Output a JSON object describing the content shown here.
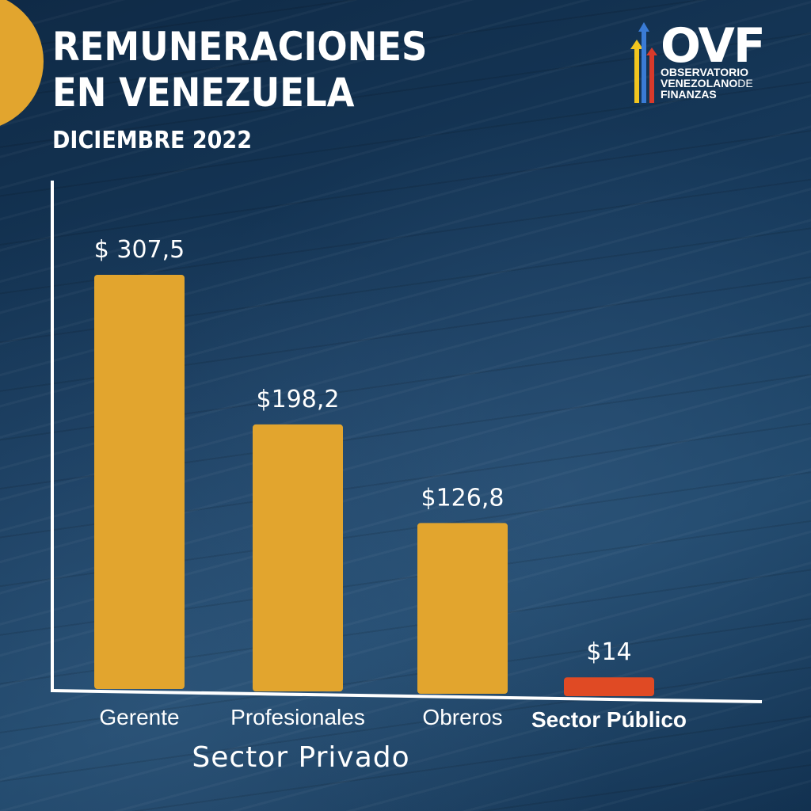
{
  "header": {
    "title_line1": "REMUNERACIONES",
    "title_line2": "EN VENEZUELA",
    "subtitle": "DICIEMBRE 2022"
  },
  "logo": {
    "brand": "OVF",
    "line1": "OBSERVATORIO",
    "line2": "VENEZOLANO",
    "line2_suffix": "DE",
    "line3": "FINANZAS"
  },
  "colors": {
    "bar_private": "#e2a52e",
    "bar_public": "#e04a24",
    "accent": "#e2a52e"
  },
  "chart_data": {
    "type": "bar",
    "title": "REMUNERACIONES EN VENEZUELA",
    "subtitle": "DICIEMBRE 2022",
    "categories": [
      "Gerente",
      "Profesionales",
      "Obreros",
      "Sector Público"
    ],
    "values": [
      307.5,
      198.2,
      126.8,
      14
    ],
    "value_labels": [
      "$ 307,5",
      "$198,2",
      "$126,8",
      "$14"
    ],
    "group_label": "Sector Privado",
    "grid": false,
    "ylim": [
      0,
      340
    ]
  }
}
